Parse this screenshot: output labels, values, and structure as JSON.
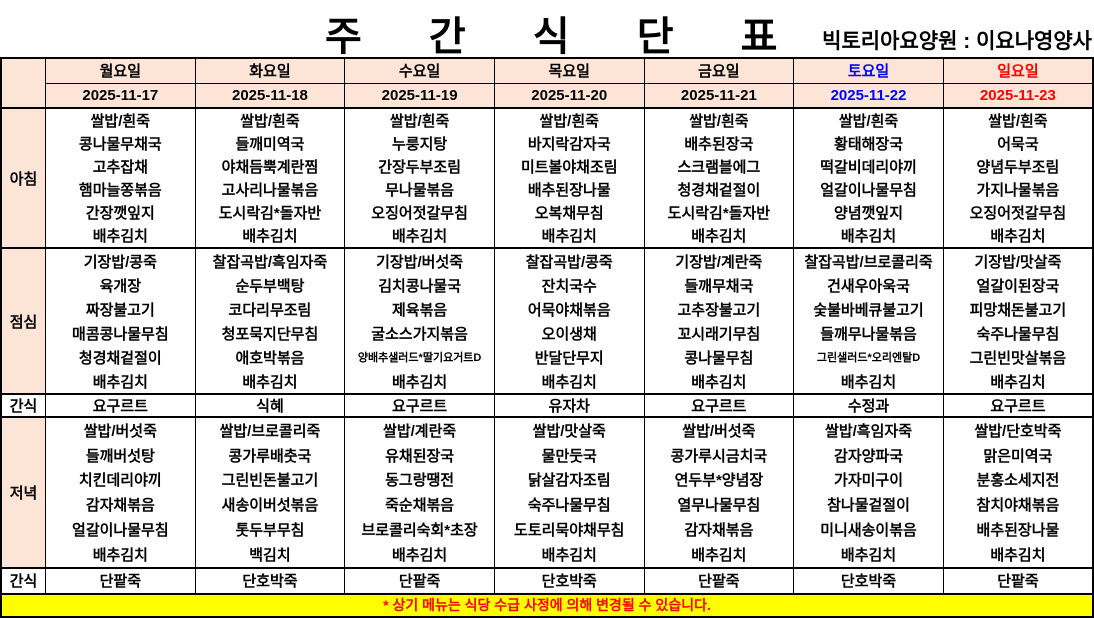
{
  "page": {
    "title": "주 간 식 단 표",
    "facility": "빅토리아요양원 : 이요나영양사",
    "note": "* 상기 메뉴는 식당 수급 사정에 의해 변경될 수 있습니다."
  },
  "colors": {
    "header_bg": "#FCE4D6",
    "weekday_text": "#000000",
    "saturday_text": "#0000FF",
    "sunday_text": "#FF0000",
    "note_bg": "#FFFF00",
    "note_text": "#FF0000",
    "border": "#000000"
  },
  "days": [
    {
      "name": "월요일",
      "date": "2025-11-17",
      "accent": "#000000"
    },
    {
      "name": "화요일",
      "date": "2025-11-18",
      "accent": "#000000"
    },
    {
      "name": "수요일",
      "date": "2025-11-19",
      "accent": "#000000"
    },
    {
      "name": "목요일",
      "date": "2025-11-20",
      "accent": "#000000"
    },
    {
      "name": "금요일",
      "date": "2025-11-21",
      "accent": "#000000"
    },
    {
      "name": "토요일",
      "date": "2025-11-22",
      "accent": "#0000FF"
    },
    {
      "name": "일요일",
      "date": "2025-11-23",
      "accent": "#FF0000"
    }
  ],
  "sections": [
    {
      "id": "breakfast",
      "label": "아침",
      "type": "menu",
      "columns": [
        [
          "쌀밥/흰죽",
          "콩나물무채국",
          "고추잡채",
          "햄마늘쫑볶음",
          "간장깻잎지",
          "배추김치"
        ],
        [
          "쌀밥/흰죽",
          "들깨미역국",
          "야채듬뿍계란찜",
          "고사리나물볶음",
          "도시락김*돌자반",
          "배추김치"
        ],
        [
          "쌀밥/흰죽",
          "누룽지탕",
          "간장두부조림",
          "무나물볶음",
          "오징어젓갈무침",
          "배추김치"
        ],
        [
          "쌀밥/흰죽",
          "바지락감자국",
          "미트볼야채조림",
          "배추된장나물",
          "오복채무침",
          "배추김치"
        ],
        [
          "쌀밥/흰죽",
          "배추된장국",
          "스크램블에그",
          "청경채겉절이",
          "도시락김*돌자반",
          "배추김치"
        ],
        [
          "쌀밥/흰죽",
          "황태해장국",
          "떡갈비데리야끼",
          "얼갈이나물무침",
          "양념깻잎지",
          "배추김치"
        ],
        [
          "쌀밥/흰죽",
          "어묵국",
          "양념두부조림",
          "가지나물볶음",
          "오징어젓갈무침",
          "배추김치"
        ]
      ]
    },
    {
      "id": "lunch",
      "label": "점심",
      "type": "menu",
      "columns": [
        [
          "기장밥/콩죽",
          "육개장",
          "짜장불고기",
          "매콤콩나물무침",
          "청경채겉절이",
          "배추김치"
        ],
        [
          "찰잡곡밥/흑임자죽",
          "순두부백탕",
          "코다리무조림",
          "청포묵지단무침",
          "애호박볶음",
          "배추김치"
        ],
        [
          "기장밥/버섯죽",
          "김치콩나물국",
          "제육볶음",
          "굴소스가지볶음",
          "양배추샐러드*딸기요거트D",
          "배추김치"
        ],
        [
          "찰잡곡밥/콩죽",
          "잔치국수",
          "어묵야채볶음",
          "오이생채",
          "반달단무지",
          "배추김치"
        ],
        [
          "기장밥/계란죽",
          "들깨무채국",
          "고추장불고기",
          "꼬시래기무침",
          "콩나물무침",
          "배추김치"
        ],
        [
          "찰잡곡밥/브로콜리죽",
          "건새우아욱국",
          "숯불바베큐불고기",
          "들깨무나물볶음",
          "그린샐러드*오리엔탈D",
          "배추김치"
        ],
        [
          "기장밥/맛살죽",
          "얼갈이된장국",
          "피망채돈불고기",
          "숙주나물무침",
          "그린빈맛살볶음",
          "배추김치"
        ]
      ]
    },
    {
      "id": "snack1",
      "label": "간식",
      "type": "single",
      "columns": [
        "요구르트",
        "식혜",
        "요구르트",
        "유자차",
        "요구르트",
        "수정과",
        "요구르트"
      ]
    },
    {
      "id": "dinner",
      "label": "저녁",
      "type": "menu",
      "columns": [
        [
          "쌀밥/버섯죽",
          "들깨버섯탕",
          "치킨데리야끼",
          "감자채볶음",
          "얼갈이나물무침",
          "배추김치"
        ],
        [
          "쌀밥/브로콜리죽",
          "콩가루배춧국",
          "그린빈돈불고기",
          "새송이버섯볶음",
          "톳두부무침",
          "백김치"
        ],
        [
          "쌀밥/계란죽",
          "유채된장국",
          "동그랑땡전",
          "죽순채볶음",
          "브로콜리숙회*초장",
          "배추김치"
        ],
        [
          "쌀밥/맛살죽",
          "물만둣국",
          "닭살감자조림",
          "숙주나물무침",
          "도토리묵야채무침",
          "배추김치"
        ],
        [
          "쌀밥/버섯죽",
          "콩가루시금치국",
          "연두부*양념장",
          "열무나물무침",
          "감자채볶음",
          "배추김치"
        ],
        [
          "쌀밥/흑임자죽",
          "감자양파국",
          "가자미구이",
          "참나물겉절이",
          "미니새송이볶음",
          "배추김치"
        ],
        [
          "쌀밥/단호박죽",
          "맑은미역국",
          "분홍소세지전",
          "참치야채볶음",
          "배추된장나물",
          "배추김치"
        ]
      ]
    },
    {
      "id": "snack2",
      "label": "간식",
      "type": "single",
      "columns": [
        "단팥죽",
        "단호박죽",
        "단팥죽",
        "단호박죽",
        "단팥죽",
        "단호박죽",
        "단팥죽"
      ]
    }
  ]
}
